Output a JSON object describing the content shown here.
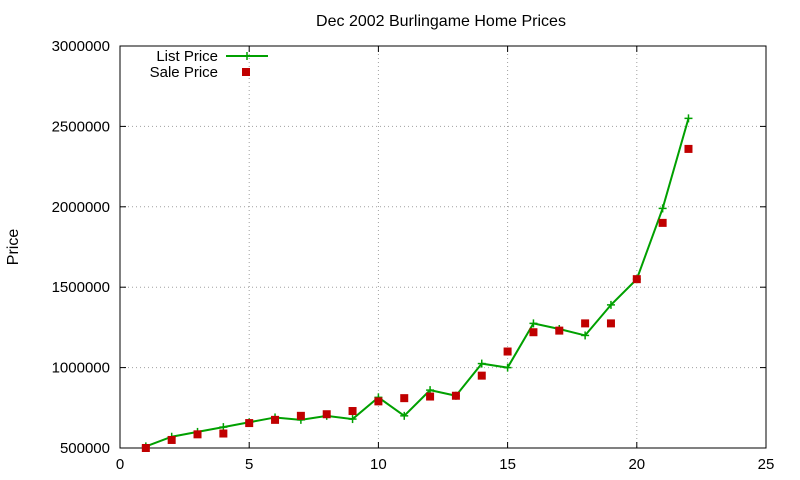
{
  "chart_data": {
    "type": "line",
    "title": "Dec 2002 Burlingame Home Prices",
    "xlabel": "",
    "ylabel": "Price",
    "xlim": [
      0,
      25
    ],
    "ylim": [
      500000,
      3000000
    ],
    "x_ticks": [
      "0",
      "5",
      "10",
      "15",
      "20",
      "25"
    ],
    "y_ticks": [
      "500000",
      "1000000",
      "1500000",
      "2000000",
      "2500000",
      "3000000"
    ],
    "grid": true,
    "legend_position": "top-left",
    "series": [
      {
        "name": "List Price",
        "style": "lines+points",
        "marker": "plus",
        "color": "#00a000",
        "x": [
          1,
          2,
          3,
          4,
          5,
          6,
          7,
          8,
          9,
          10,
          11,
          12,
          13,
          14,
          15,
          16,
          17,
          18,
          19,
          20,
          21,
          22
        ],
        "y": [
          510000,
          570000,
          600000,
          630000,
          660000,
          690000,
          675000,
          700000,
          680000,
          815000,
          700000,
          860000,
          825000,
          1025000,
          1000000,
          1275000,
          1240000,
          1200000,
          1390000,
          1550000,
          1990000,
          2550000
        ]
      },
      {
        "name": "Sale Price",
        "style": "points",
        "marker": "square",
        "color": "#c00000",
        "x": [
          1,
          2,
          3,
          4,
          5,
          6,
          7,
          8,
          9,
          10,
          11,
          12,
          13,
          14,
          15,
          16,
          17,
          18,
          19,
          20,
          21,
          22
        ],
        "y": [
          500000,
          550000,
          585000,
          590000,
          655000,
          675000,
          700000,
          710000,
          730000,
          790000,
          810000,
          820000,
          825000,
          950000,
          1100000,
          1220000,
          1230000,
          1275000,
          1275000,
          1550000,
          1900000,
          2360000
        ]
      }
    ]
  }
}
